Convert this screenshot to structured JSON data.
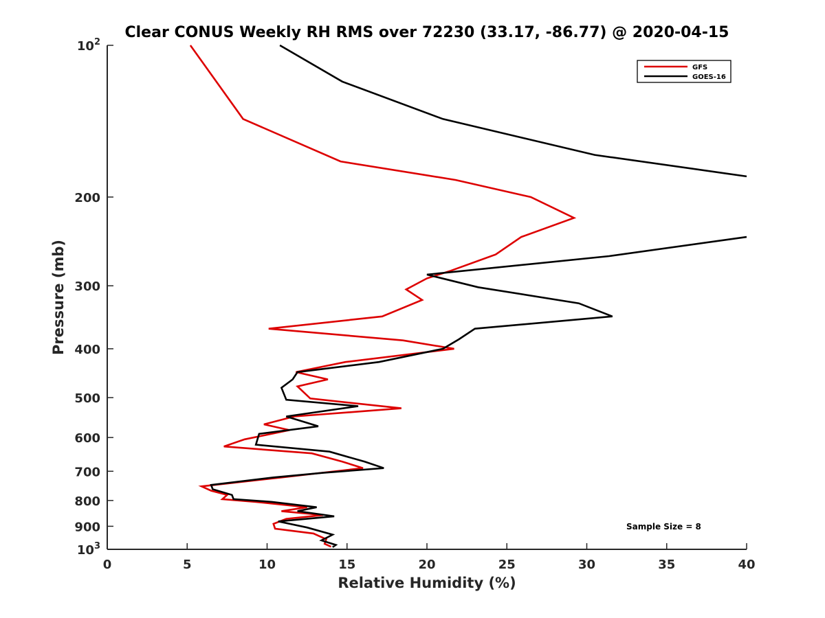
{
  "chart_data": {
    "type": "line",
    "title": "Clear CONUS Weekly RH RMS over 72230 (33.17, -86.77) @ 2020-04-15",
    "xlabel": "Relative Humidity (%)",
    "ylabel": "Pressure (mb)",
    "xlim": [
      0,
      40
    ],
    "ylim": [
      100,
      1000
    ],
    "yscale": "log",
    "yreversed": true,
    "grid": false,
    "legend_position": "top-right",
    "x_ticks": [
      {
        "value": 0,
        "label": "0"
      },
      {
        "value": 5,
        "label": "5"
      },
      {
        "value": 10,
        "label": "10"
      },
      {
        "value": 15,
        "label": "15"
      },
      {
        "value": 20,
        "label": "20"
      },
      {
        "value": 25,
        "label": "25"
      },
      {
        "value": 30,
        "label": "30"
      },
      {
        "value": 35,
        "label": "35"
      },
      {
        "value": 40,
        "label": "40"
      }
    ],
    "y_ticks": [
      {
        "value": 100,
        "base": "10",
        "exp": "2"
      },
      {
        "value": 200,
        "label": "200"
      },
      {
        "value": 300,
        "label": "300"
      },
      {
        "value": 400,
        "label": "400"
      },
      {
        "value": 500,
        "label": "500"
      },
      {
        "value": 600,
        "label": "600"
      },
      {
        "value": 700,
        "label": "700"
      },
      {
        "value": 800,
        "label": "800"
      },
      {
        "value": 900,
        "label": "900"
      },
      {
        "value": 1000,
        "base": "10",
        "exp": "3"
      }
    ],
    "annotation": "Sample Size = 8",
    "series": [
      {
        "name": "GFS",
        "color": "#dd0000",
        "points": [
          {
            "x": 5.2,
            "p": 100
          },
          {
            "x": 8.5,
            "p": 140
          },
          {
            "x": 14.6,
            "p": 170
          },
          {
            "x": 21.8,
            "p": 185
          },
          {
            "x": 26.5,
            "p": 200
          },
          {
            "x": 29.2,
            "p": 220
          },
          {
            "x": 25.9,
            "p": 240
          },
          {
            "x": 24.3,
            "p": 260
          },
          {
            "x": 21.5,
            "p": 280
          },
          {
            "x": 20.0,
            "p": 290
          },
          {
            "x": 18.7,
            "p": 305
          },
          {
            "x": 19.7,
            "p": 320
          },
          {
            "x": 17.2,
            "p": 345
          },
          {
            "x": 10.1,
            "p": 365
          },
          {
            "x": 18.5,
            "p": 385
          },
          {
            "x": 21.7,
            "p": 400
          },
          {
            "x": 14.9,
            "p": 425
          },
          {
            "x": 11.8,
            "p": 445
          },
          {
            "x": 13.8,
            "p": 460
          },
          {
            "x": 11.9,
            "p": 475
          },
          {
            "x": 12.7,
            "p": 502
          },
          {
            "x": 18.4,
            "p": 525
          },
          {
            "x": 11.7,
            "p": 545
          },
          {
            "x": 9.8,
            "p": 565
          },
          {
            "x": 11.4,
            "p": 580
          },
          {
            "x": 8.6,
            "p": 605
          },
          {
            "x": 7.3,
            "p": 625
          },
          {
            "x": 12.8,
            "p": 645
          },
          {
            "x": 14.7,
            "p": 670
          },
          {
            "x": 16.0,
            "p": 690
          },
          {
            "x": 10.9,
            "p": 720
          },
          {
            "x": 5.9,
            "p": 750
          },
          {
            "x": 6.5,
            "p": 765
          },
          {
            "x": 7.5,
            "p": 780
          },
          {
            "x": 7.2,
            "p": 795
          },
          {
            "x": 9.3,
            "p": 805
          },
          {
            "x": 12.5,
            "p": 825
          },
          {
            "x": 10.9,
            "p": 840
          },
          {
            "x": 13.5,
            "p": 855
          },
          {
            "x": 11.2,
            "p": 870
          },
          {
            "x": 10.4,
            "p": 890
          },
          {
            "x": 10.5,
            "p": 910
          },
          {
            "x": 12.9,
            "p": 930
          },
          {
            "x": 13.7,
            "p": 955
          },
          {
            "x": 13.6,
            "p": 975
          },
          {
            "x": 14.0,
            "p": 988
          }
        ]
      },
      {
        "name": "GOES-16",
        "color": "#000000",
        "points": [
          {
            "x": 10.8,
            "p": 100
          },
          {
            "x": 14.7,
            "p": 118
          },
          {
            "x": 21.0,
            "p": 140
          },
          {
            "x": 30.5,
            "p": 165
          },
          {
            "x": 40.0,
            "p": 182
          },
          {
            "x": null,
            "p": null
          },
          {
            "x": 40.0,
            "p": 240
          },
          {
            "x": 31.4,
            "p": 262
          },
          {
            "x": 20.0,
            "p": 285
          },
          {
            "x": 23.2,
            "p": 302
          },
          {
            "x": 29.5,
            "p": 325
          },
          {
            "x": 31.6,
            "p": 345
          },
          {
            "x": 23.0,
            "p": 365
          },
          {
            "x": 22.0,
            "p": 383
          },
          {
            "x": 21.0,
            "p": 400
          },
          {
            "x": 17.0,
            "p": 425
          },
          {
            "x": 11.9,
            "p": 445
          },
          {
            "x": 11.6,
            "p": 460
          },
          {
            "x": 10.9,
            "p": 478
          },
          {
            "x": 11.2,
            "p": 505
          },
          {
            "x": 15.7,
            "p": 520
          },
          {
            "x": 11.2,
            "p": 545
          },
          {
            "x": 13.2,
            "p": 570
          },
          {
            "x": 9.5,
            "p": 590
          },
          {
            "x": 9.3,
            "p": 620
          },
          {
            "x": 13.9,
            "p": 640
          },
          {
            "x": 16.1,
            "p": 670
          },
          {
            "x": 17.3,
            "p": 690
          },
          {
            "x": 13.5,
            "p": 705
          },
          {
            "x": 10.4,
            "p": 720
          },
          {
            "x": 6.5,
            "p": 745
          },
          {
            "x": 6.6,
            "p": 760
          },
          {
            "x": 7.8,
            "p": 780
          },
          {
            "x": 7.9,
            "p": 795
          },
          {
            "x": 10.3,
            "p": 805
          },
          {
            "x": 13.1,
            "p": 825
          },
          {
            "x": 11.9,
            "p": 840
          },
          {
            "x": 14.2,
            "p": 860
          },
          {
            "x": 10.7,
            "p": 880
          },
          {
            "x": 12.5,
            "p": 905
          },
          {
            "x": 14.1,
            "p": 935
          },
          {
            "x": 13.4,
            "p": 960
          },
          {
            "x": 14.3,
            "p": 980
          },
          {
            "x": 14.1,
            "p": 990
          }
        ]
      }
    ]
  }
}
